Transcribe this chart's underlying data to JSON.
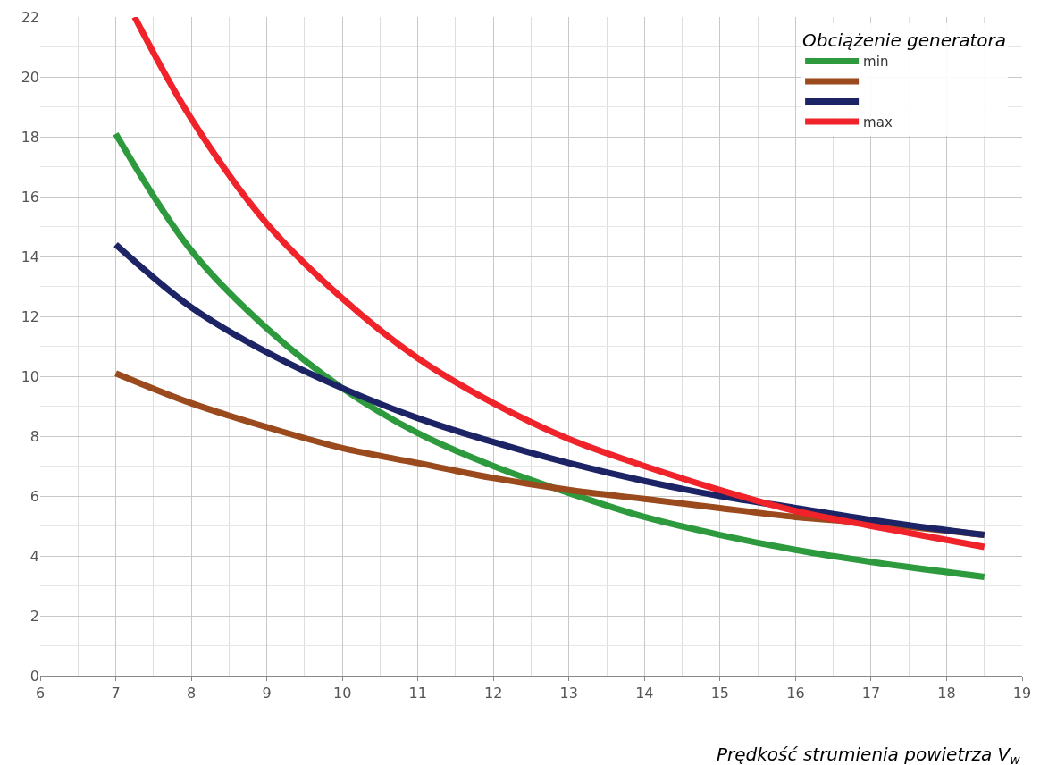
{
  "chart_data": {
    "type": "line",
    "xlabel": "Prędkość strumienia powietrza V$_{w}$",
    "legend_title": "Obciążenie generatora",
    "x": [
      7,
      8,
      9,
      10,
      11,
      12,
      13,
      14,
      15,
      16,
      17,
      18.5
    ],
    "series": [
      {
        "name": "min",
        "color": "#2e9a3e",
        "values": [
          18.1,
          14.2,
          11.6,
          9.6,
          8.1,
          7.0,
          6.1,
          5.3,
          4.7,
          4.2,
          3.8,
          3.3
        ]
      },
      {
        "color": "#9a4a1c",
        "values": [
          10.1,
          9.1,
          8.3,
          7.6,
          7.1,
          6.6,
          6.2,
          5.9,
          5.6,
          5.3,
          5.1,
          4.7
        ]
      },
      {
        "color": "#1c2466",
        "values": [
          14.4,
          12.3,
          10.8,
          9.6,
          8.6,
          7.8,
          7.1,
          6.5,
          6.0,
          5.6,
          5.2,
          4.7
        ]
      },
      {
        "name": "max",
        "color": "#f0222a",
        "x": [
          7.25,
          8,
          9,
          10,
          11,
          12,
          13,
          14,
          15,
          16,
          17,
          18.5
        ],
        "values": [
          22,
          18.6,
          15.1,
          12.6,
          10.6,
          9.1,
          7.9,
          7.0,
          6.2,
          5.5,
          5.0,
          4.3
        ]
      }
    ],
    "xlim": [
      6,
      19
    ],
    "xticks": [
      6,
      7,
      8,
      9,
      10,
      11,
      12,
      13,
      14,
      15,
      16,
      17,
      18,
      19
    ],
    "ylim": [
      0,
      22
    ],
    "yticks": [
      0,
      2,
      4,
      6,
      8,
      10,
      12,
      14,
      16,
      18,
      20,
      22
    ],
    "grid": true,
    "legend": "top right",
    "marker": "none",
    "line_style": "solid"
  }
}
